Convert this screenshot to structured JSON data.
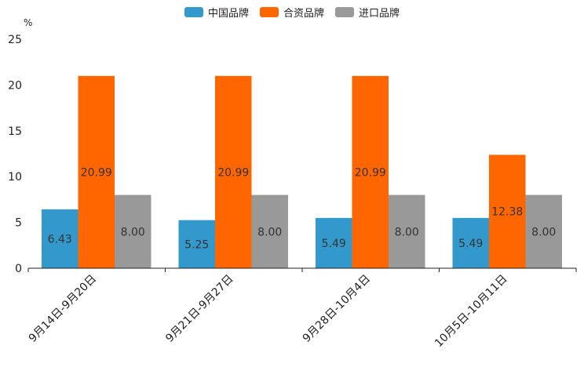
{
  "chart_data": {
    "type": "bar",
    "title": "",
    "xlabel": "",
    "ylabel": "%",
    "ylim": [
      0,
      25
    ],
    "yticks": [
      0,
      5,
      10,
      15,
      20,
      25
    ],
    "grid": false,
    "legend_position": "top-center",
    "categories": [
      "9月14日-9月20日",
      "9月21日-9月27日",
      "9月28日-10月4日",
      "10月5日-10月11日"
    ],
    "series": [
      {
        "name": "中国品牌",
        "color": "#3399cc",
        "values": [
          6.43,
          5.25,
          5.49,
          5.49
        ],
        "labels": [
          "6.43",
          "5.25",
          "5.49",
          "5.49"
        ]
      },
      {
        "name": "合资品牌",
        "color": "#ff6600",
        "values": [
          20.99,
          20.99,
          20.99,
          12.38
        ],
        "labels": [
          "20.99",
          "20.99",
          "20.99",
          "12.38"
        ]
      },
      {
        "name": "进口品牌",
        "color": "#999999",
        "values": [
          8.0,
          8.0,
          8.0,
          8.0
        ],
        "labels": [
          "8.00",
          "8.00",
          "8.00",
          "8.00"
        ]
      }
    ]
  }
}
